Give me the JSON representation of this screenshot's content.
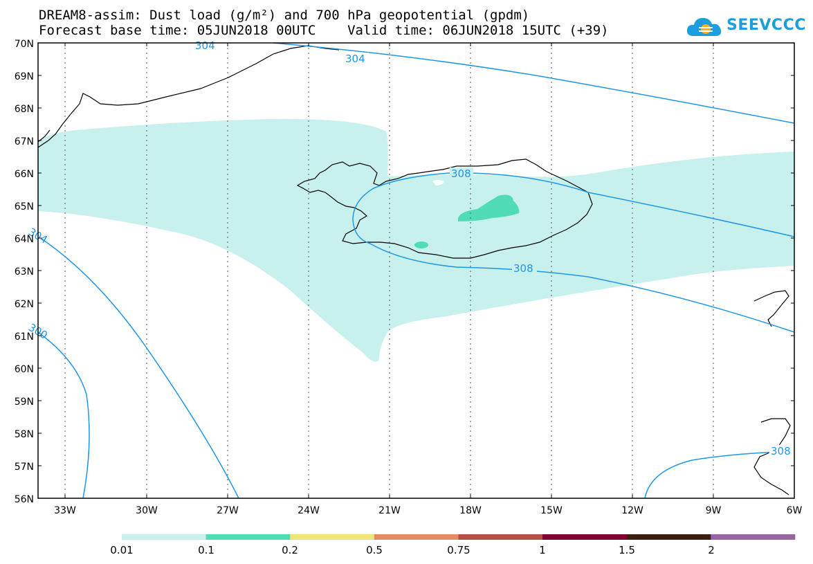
{
  "title_line1": "DREAM8-assim: Dust load (g/m²) and 700 hPa geopotential (gpdm)",
  "title_line2": "Forecast base time: 05JUN2018 00UTC    Valid time: 06JUN2018 15UTC (+39)",
  "logo_text": "SEEVCCC",
  "map": {
    "lat_labels": [
      "70N",
      "69N",
      "68N",
      "67N",
      "66N",
      "65N",
      "64N",
      "63N",
      "62N",
      "61N",
      "60N",
      "59N",
      "58N",
      "57N",
      "56N"
    ],
    "lon_labels": [
      "33W",
      "30W",
      "27W",
      "24W",
      "21W",
      "18W",
      "15W",
      "12W",
      "9W",
      "6W"
    ],
    "contour_labels": [
      "304",
      "304",
      "308",
      "308",
      "304",
      "300",
      "308"
    ]
  },
  "colorbar": {
    "colors": [
      "#c8f0ec",
      "#50dcb4",
      "#f0e678",
      "#e68c64",
      "#b45046",
      "#820032",
      "#3c1e14",
      "#9664a0"
    ],
    "labels": [
      "0.01",
      "0.1",
      "0.2",
      "0.5",
      "0.75",
      "1",
      "1.5",
      "2"
    ]
  },
  "colors": {
    "dust_low": "#c8f0ec",
    "dust_mid": "#50dcb4",
    "contour": "#1e96e6",
    "grid": "#555555",
    "coast": "#000000"
  }
}
